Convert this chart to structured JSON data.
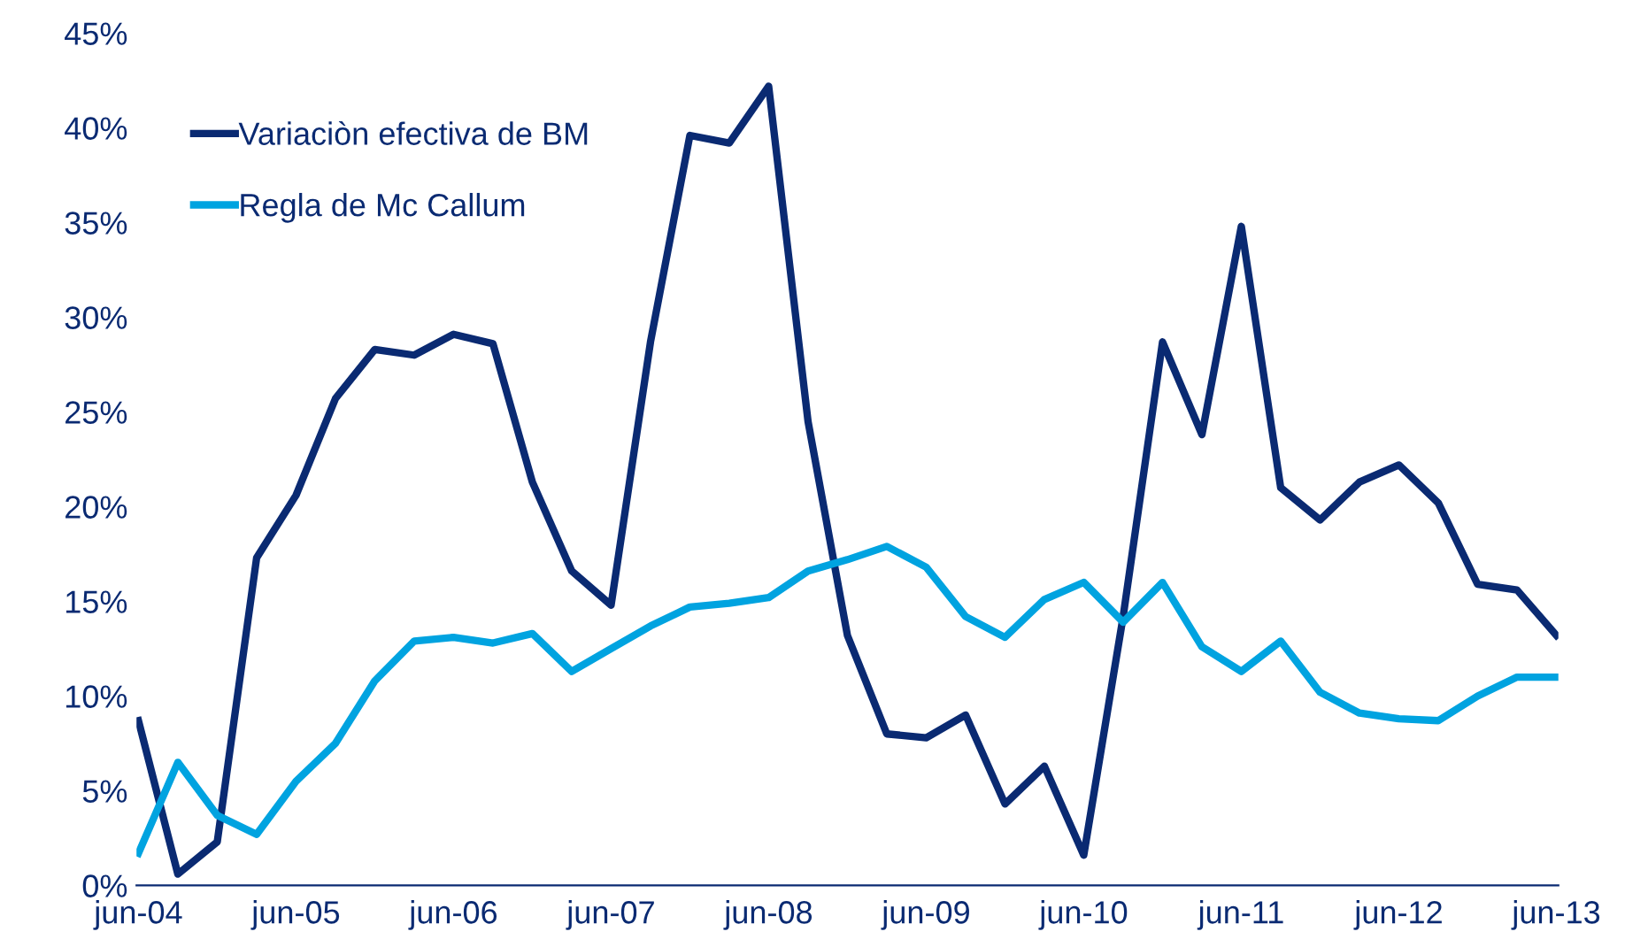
{
  "chart_data": {
    "type": "line",
    "categories": [
      "jun-04",
      null,
      null,
      null,
      "jun-05",
      null,
      null,
      null,
      "jun-06",
      null,
      null,
      null,
      "jun-07",
      null,
      null,
      null,
      "jun-08",
      null,
      null,
      null,
      "jun-09",
      null,
      null,
      null,
      "jun-10",
      null,
      null,
      null,
      "jun-11",
      null,
      null,
      null,
      "jun-12",
      null,
      null,
      null,
      "jun-13"
    ],
    "series": [
      {
        "name": "Variaciòn efectiva de BM",
        "color": "#0a2a72",
        "values": [
          8.7,
          0.6,
          2.3,
          17.3,
          20.6,
          25.7,
          28.3,
          28.0,
          29.1,
          28.6,
          21.3,
          16.6,
          14.8,
          28.7,
          39.6,
          39.2,
          42.2,
          24.5,
          13.2,
          8.0,
          7.8,
          9.0,
          4.3,
          6.3,
          1.6,
          14.2,
          28.7,
          23.8,
          34.8,
          21.0,
          19.3,
          21.3,
          22.2,
          20.2,
          15.9,
          15.6,
          13.2
        ]
      },
      {
        "name": "Regla de Mc Callum",
        "color": "#00a3e0",
        "values": [
          1.7,
          6.5,
          3.7,
          2.7,
          5.5,
          7.5,
          10.8,
          12.9,
          13.1,
          12.8,
          13.3,
          11.3,
          12.5,
          13.7,
          14.7,
          14.9,
          15.2,
          16.6,
          17.2,
          17.9,
          16.8,
          14.2,
          13.1,
          15.1,
          16.0,
          13.9,
          16.0,
          12.6,
          11.3,
          12.9,
          10.2,
          9.1,
          8.8,
          8.7,
          10.0,
          11.0,
          11.0
        ]
      }
    ],
    "ylim": [
      0,
      45
    ],
    "yticks": [
      {
        "value": 0,
        "label": "0%"
      },
      {
        "value": 5,
        "label": "5%"
      },
      {
        "value": 10,
        "label": "10%"
      },
      {
        "value": 15,
        "label": "15%"
      },
      {
        "value": 20,
        "label": "20%"
      },
      {
        "value": 25,
        "label": "25%"
      },
      {
        "value": 30,
        "label": "30%"
      },
      {
        "value": 35,
        "label": "35%"
      },
      {
        "value": 40,
        "label": "40%"
      },
      {
        "value": 45,
        "label": "45%"
      }
    ],
    "legend": "top left",
    "grid": false,
    "marker": "none",
    "line_style": "solid"
  }
}
